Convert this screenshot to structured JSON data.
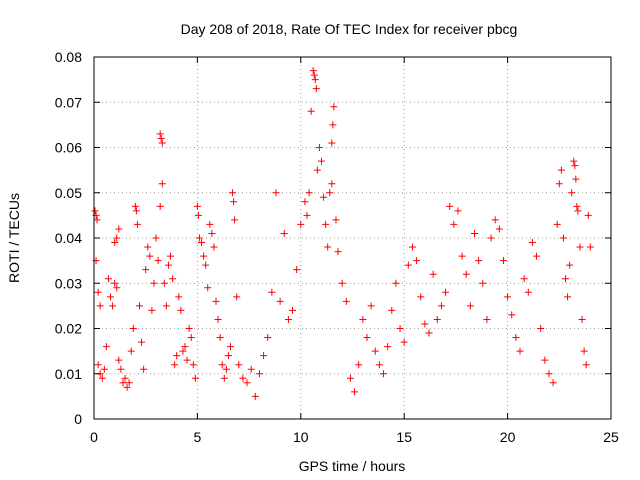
{
  "chart_data": {
    "type": "scatter",
    "title": "Day 208 of 2018, Rate Of TEC Index for receiver pbcg",
    "xlabel": "GPS time / hours",
    "ylabel": "ROTI / TECUs",
    "xlim": [
      0,
      25
    ],
    "ylim": [
      0,
      0.08
    ],
    "x_ticks": [
      0,
      5,
      10,
      15,
      20,
      25
    ],
    "x_tick_labels": [
      "0",
      "5",
      "10",
      "15",
      "20",
      "25"
    ],
    "y_ticks": [
      0,
      0.01,
      0.02,
      0.03,
      0.04,
      0.05,
      0.06,
      0.07,
      0.08
    ],
    "y_tick_labels": [
      "0",
      "0.01",
      "0.02",
      "0.03",
      "0.04",
      "0.05",
      "0.06",
      "0.07",
      "0.08"
    ],
    "grid": true,
    "marker": "+",
    "marker_color": "#ff0000",
    "series": [
      {
        "name": "ROTI",
        "points": [
          [
            0.05,
            0.046
          ],
          [
            0.1,
            0.045
          ],
          [
            0.15,
            0.044
          ],
          [
            0.1,
            0.035
          ],
          [
            0.2,
            0.028
          ],
          [
            0.3,
            0.025
          ],
          [
            0.2,
            0.012
          ],
          [
            0.3,
            0.01
          ],
          [
            0.4,
            0.009
          ],
          [
            0.5,
            0.011
          ],
          [
            0.6,
            0.016
          ],
          [
            0.7,
            0.031
          ],
          [
            0.8,
            0.027
          ],
          [
            0.9,
            0.025
          ],
          [
            1.0,
            0.03
          ],
          [
            1.1,
            0.029
          ],
          [
            1.2,
            0.013
          ],
          [
            1.3,
            0.011
          ],
          [
            1.0,
            0.039
          ],
          [
            1.1,
            0.04
          ],
          [
            1.2,
            0.042
          ],
          [
            1.4,
            0.008
          ],
          [
            1.5,
            0.009
          ],
          [
            1.6,
            0.007
          ],
          [
            1.7,
            0.008
          ],
          [
            1.8,
            0.015
          ],
          [
            1.9,
            0.02
          ],
          [
            2.0,
            0.047
          ],
          [
            2.05,
            0.046
          ],
          [
            2.1,
            0.043
          ],
          [
            2.2,
            0.025
          ],
          [
            2.3,
            0.017
          ],
          [
            2.4,
            0.011
          ],
          [
            2.5,
            0.033
          ],
          [
            2.6,
            0.038
          ],
          [
            2.7,
            0.036
          ],
          [
            2.8,
            0.024
          ],
          [
            2.9,
            0.03
          ],
          [
            3.0,
            0.04
          ],
          [
            3.1,
            0.035
          ],
          [
            3.2,
            0.063
          ],
          [
            3.25,
            0.062
          ],
          [
            3.3,
            0.061
          ],
          [
            3.3,
            0.052
          ],
          [
            3.2,
            0.047
          ],
          [
            3.4,
            0.03
          ],
          [
            3.5,
            0.025
          ],
          [
            3.6,
            0.034
          ],
          [
            3.7,
            0.036
          ],
          [
            3.8,
            0.031
          ],
          [
            3.9,
            0.012
          ],
          [
            4.0,
            0.014
          ],
          [
            4.1,
            0.027
          ],
          [
            4.2,
            0.024
          ],
          [
            4.3,
            0.015
          ],
          [
            4.4,
            0.016
          ],
          [
            4.5,
            0.013
          ],
          [
            4.6,
            0.02
          ],
          [
            4.7,
            0.018
          ],
          [
            4.8,
            0.012
          ],
          [
            4.9,
            0.009
          ],
          [
            5.0,
            0.047
          ],
          [
            5.05,
            0.045
          ],
          [
            5.1,
            0.04
          ],
          [
            5.2,
            0.039
          ],
          [
            5.3,
            0.036
          ],
          [
            5.4,
            0.034
          ],
          [
            5.5,
            0.029
          ],
          [
            5.6,
            0.043
          ],
          [
            5.7,
            0.041
          ],
          [
            5.8,
            0.038
          ],
          [
            5.9,
            0.026
          ],
          [
            6.0,
            0.022
          ],
          [
            6.1,
            0.018
          ],
          [
            6.2,
            0.012
          ],
          [
            6.3,
            0.009
          ],
          [
            6.4,
            0.011
          ],
          [
            6.5,
            0.014
          ],
          [
            6.6,
            0.016
          ],
          [
            6.7,
            0.05
          ],
          [
            6.75,
            0.048
          ],
          [
            6.8,
            0.044
          ],
          [
            6.9,
            0.027
          ],
          [
            7.0,
            0.012
          ],
          [
            7.2,
            0.009
          ],
          [
            7.4,
            0.008
          ],
          [
            7.6,
            0.011
          ],
          [
            7.8,
            0.005
          ],
          [
            8.0,
            0.01
          ],
          [
            8.2,
            0.014
          ],
          [
            8.4,
            0.018
          ],
          [
            8.6,
            0.028
          ],
          [
            8.8,
            0.05
          ],
          [
            9.0,
            0.026
          ],
          [
            9.2,
            0.041
          ],
          [
            9.4,
            0.022
          ],
          [
            9.6,
            0.024
          ],
          [
            9.8,
            0.033
          ],
          [
            10.0,
            0.043
          ],
          [
            10.2,
            0.048
          ],
          [
            10.3,
            0.045
          ],
          [
            10.4,
            0.05
          ],
          [
            10.5,
            0.068
          ],
          [
            10.6,
            0.077
          ],
          [
            10.65,
            0.076
          ],
          [
            10.7,
            0.075
          ],
          [
            10.75,
            0.073
          ],
          [
            10.8,
            0.055
          ],
          [
            10.9,
            0.06
          ],
          [
            11.0,
            0.057
          ],
          [
            11.1,
            0.049
          ],
          [
            11.2,
            0.043
          ],
          [
            11.3,
            0.038
          ],
          [
            11.4,
            0.05
          ],
          [
            11.5,
            0.052
          ],
          [
            11.55,
            0.065
          ],
          [
            11.6,
            0.069
          ],
          [
            11.5,
            0.061
          ],
          [
            11.7,
            0.044
          ],
          [
            11.8,
            0.037
          ],
          [
            12.0,
            0.03
          ],
          [
            12.2,
            0.026
          ],
          [
            12.4,
            0.009
          ],
          [
            12.6,
            0.006
          ],
          [
            12.8,
            0.012
          ],
          [
            13.0,
            0.022
          ],
          [
            13.2,
            0.018
          ],
          [
            13.4,
            0.025
          ],
          [
            13.6,
            0.015
          ],
          [
            13.8,
            0.012
          ],
          [
            14.0,
            0.01
          ],
          [
            14.2,
            0.016
          ],
          [
            14.4,
            0.024
          ],
          [
            14.6,
            0.03
          ],
          [
            14.8,
            0.02
          ],
          [
            15.0,
            0.017
          ],
          [
            15.2,
            0.034
          ],
          [
            15.4,
            0.038
          ],
          [
            15.6,
            0.035
          ],
          [
            15.8,
            0.027
          ],
          [
            16.0,
            0.021
          ],
          [
            16.2,
            0.019
          ],
          [
            16.4,
            0.032
          ],
          [
            16.6,
            0.022
          ],
          [
            16.8,
            0.025
          ],
          [
            17.0,
            0.028
          ],
          [
            17.2,
            0.047
          ],
          [
            17.4,
            0.043
          ],
          [
            17.6,
            0.046
          ],
          [
            17.8,
            0.036
          ],
          [
            18.0,
            0.032
          ],
          [
            18.2,
            0.025
          ],
          [
            18.4,
            0.041
          ],
          [
            18.6,
            0.035
          ],
          [
            18.8,
            0.03
          ],
          [
            19.0,
            0.022
          ],
          [
            19.2,
            0.04
          ],
          [
            19.4,
            0.044
          ],
          [
            19.6,
            0.042
          ],
          [
            19.8,
            0.035
          ],
          [
            20.0,
            0.027
          ],
          [
            20.2,
            0.023
          ],
          [
            20.4,
            0.018
          ],
          [
            20.6,
            0.015
          ],
          [
            20.8,
            0.031
          ],
          [
            21.0,
            0.028
          ],
          [
            21.2,
            0.039
          ],
          [
            21.4,
            0.036
          ],
          [
            21.6,
            0.02
          ],
          [
            21.8,
            0.013
          ],
          [
            22.0,
            0.01
          ],
          [
            22.2,
            0.008
          ],
          [
            22.4,
            0.043
          ],
          [
            22.5,
            0.052
          ],
          [
            22.6,
            0.055
          ],
          [
            22.7,
            0.04
          ],
          [
            22.8,
            0.031
          ],
          [
            22.9,
            0.027
          ],
          [
            23.0,
            0.034
          ],
          [
            23.1,
            0.05
          ],
          [
            23.2,
            0.057
          ],
          [
            23.25,
            0.056
          ],
          [
            23.3,
            0.053
          ],
          [
            23.35,
            0.047
          ],
          [
            23.4,
            0.046
          ],
          [
            23.5,
            0.038
          ],
          [
            23.6,
            0.022
          ],
          [
            23.7,
            0.015
          ],
          [
            23.8,
            0.012
          ],
          [
            23.9,
            0.045
          ],
          [
            24.0,
            0.038
          ]
        ]
      }
    ]
  }
}
